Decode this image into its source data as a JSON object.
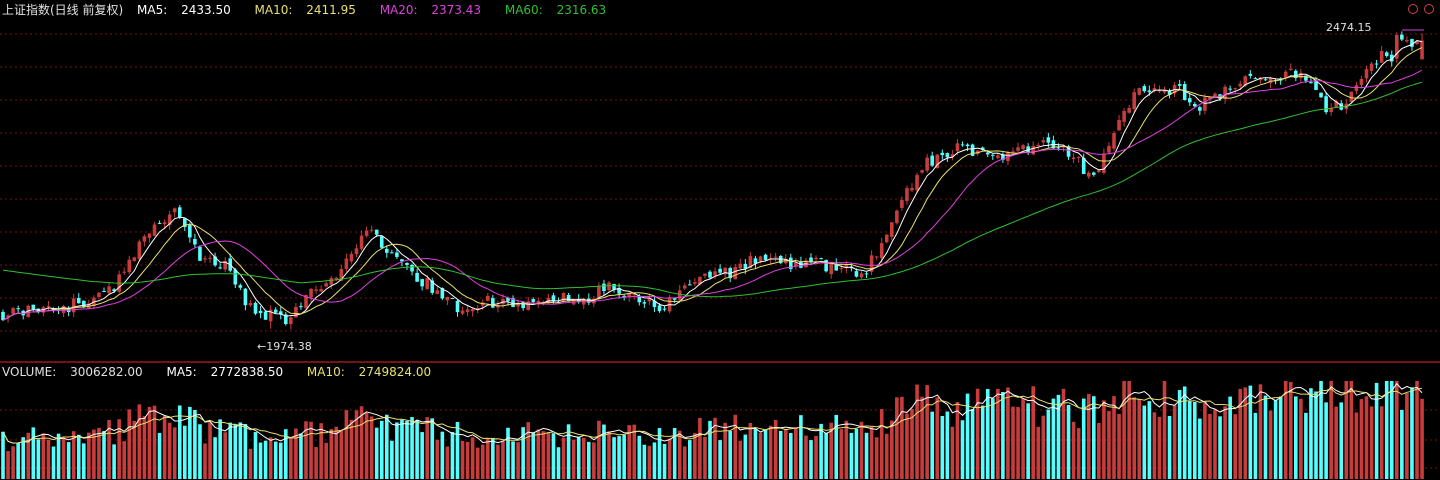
{
  "header": {
    "title": "上证指数(日线 前复权)",
    "ma5_label": "MA5:",
    "ma5_value": "2433.50",
    "ma10_label": "MA10:",
    "ma10_value": "2411.95",
    "ma20_label": "MA20:",
    "ma20_value": "2373.43",
    "ma60_label": "MA60:",
    "ma60_value": "2316.63"
  },
  "volume_header": {
    "volume_label": "VOLUME:",
    "volume_value": "3006282.00",
    "ma5_label": "MA5:",
    "ma5_value": "2772838.50",
    "ma10_label": "MA10:",
    "ma10_value": "2749824.00"
  },
  "annotations": {
    "high": "2474.15",
    "low": "←1974.38"
  },
  "colors": {
    "background": "#000000",
    "up": "#c83c3c",
    "down": "#54ffff",
    "ma5": "#ffffff",
    "ma10": "#e8e070",
    "ma20": "#e040e0",
    "ma60": "#30c030",
    "grid": "#7a1010",
    "separator": "#a01818",
    "title": "#e0e0e0"
  },
  "chart_data": {
    "type": "candlestick",
    "title": "上证指数(日线 前复权)",
    "ylim": [
      1935,
      2500
    ],
    "annotated_high": 2474.15,
    "annotated_low": 1974.38,
    "ma_latest": {
      "MA5": 2433.5,
      "MA10": 2411.95,
      "MA20": 2373.43,
      "MA60": 2316.63
    },
    "volume_latest": {
      "VOLUME": 3006282.0,
      "MA5": 2772838.5,
      "MA10": 2749824.0
    },
    "volume_ylim": [
      0,
      3200000
    ],
    "close_path": [
      [
        0,
        2000
      ],
      [
        12,
        2010
      ],
      [
        22,
        2040
      ],
      [
        27,
        2120
      ],
      [
        34,
        2170
      ],
      [
        39,
        2100
      ],
      [
        44,
        2080
      ],
      [
        48,
        2020
      ],
      [
        52,
        2000
      ],
      [
        56,
        1985
      ],
      [
        61,
        2040
      ],
      [
        66,
        2060
      ],
      [
        72,
        2140
      ],
      [
        77,
        2100
      ],
      [
        82,
        2060
      ],
      [
        86,
        2040
      ],
      [
        90,
        2010
      ],
      [
        96,
        2020
      ],
      [
        102,
        2015
      ],
      [
        108,
        2030
      ],
      [
        114,
        2020
      ],
      [
        120,
        2045
      ],
      [
        125,
        2030
      ],
      [
        130,
        2010
      ],
      [
        134,
        2030
      ],
      [
        138,
        2060
      ],
      [
        141,
        2075
      ],
      [
        144,
        2070
      ],
      [
        148,
        2090
      ],
      [
        152,
        2100
      ],
      [
        156,
        2082
      ],
      [
        160,
        2090
      ],
      [
        166,
        2075
      ],
      [
        170,
        2065
      ],
      [
        174,
        2110
      ],
      [
        178,
        2190
      ],
      [
        182,
        2250
      ],
      [
        186,
        2270
      ],
      [
        190,
        2282
      ],
      [
        194,
        2270
      ],
      [
        198,
        2265
      ],
      [
        202,
        2280
      ],
      [
        206,
        2290
      ],
      [
        210,
        2285
      ],
      [
        214,
        2245
      ],
      [
        217,
        2245
      ],
      [
        221,
        2320
      ],
      [
        225,
        2380
      ],
      [
        229,
        2375
      ],
      [
        233,
        2380
      ],
      [
        236,
        2350
      ],
      [
        240,
        2365
      ],
      [
        244,
        2390
      ],
      [
        248,
        2395
      ],
      [
        252,
        2405
      ],
      [
        256,
        2405
      ],
      [
        259,
        2380
      ],
      [
        262,
        2345
      ],
      [
        265,
        2355
      ],
      [
        268,
        2380
      ],
      [
        271,
        2420
      ],
      [
        273,
        2435
      ],
      [
        275,
        2430
      ],
      [
        276,
        2462
      ]
    ]
  }
}
